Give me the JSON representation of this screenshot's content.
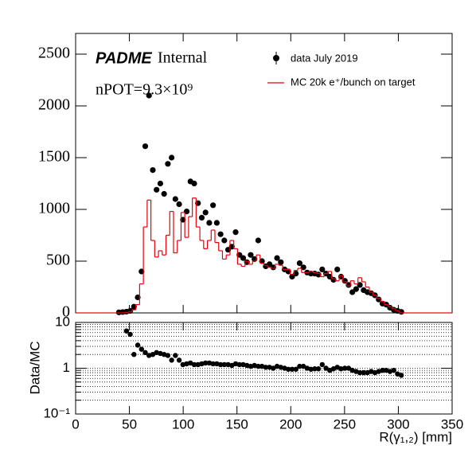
{
  "chart_data": [
    {
      "type": "histogram",
      "annotations": [
        "PADME",
        "Internal",
        "nPOT=9.3×10⁹"
      ],
      "bins": [
        0,
        3.5,
        7,
        10.5,
        14,
        17.5,
        21,
        24.5,
        28,
        31.5,
        35,
        38.5,
        42,
        45.5,
        49,
        52.5,
        56,
        59.5,
        63,
        66.5,
        70,
        73.5,
        77,
        80.5,
        84,
        87.5,
        91,
        94.5,
        98,
        101.5,
        105,
        108.5,
        112,
        115.5,
        119,
        122.5,
        126,
        129.5,
        133,
        136.5,
        140,
        143.5,
        147,
        150.5,
        154,
        157.5,
        161,
        164.5,
        168,
        171.5,
        175,
        178.5,
        182,
        185.5,
        189,
        192.5,
        196,
        199.5,
        203,
        206.5,
        210,
        213.5,
        217,
        220.5,
        224,
        227.5,
        231,
        234.5,
        238,
        241.5,
        245,
        248.5,
        252,
        255.5,
        259,
        262.5,
        266,
        269.5,
        273,
        276.5,
        280,
        283.5,
        287,
        290.5,
        294,
        297.5,
        301,
        304.5,
        308,
        311.5,
        315,
        318.5,
        322,
        325.5,
        329,
        332.5,
        336,
        339.5,
        343,
        346.5,
        350
      ],
      "series": [
        {
          "name": "data July 2019",
          "color": "#000000",
          "style": "points",
          "values": [
            null,
            null,
            null,
            null,
            null,
            null,
            null,
            null,
            null,
            null,
            null,
            5,
            8,
            12,
            20,
            60,
            150,
            400,
            1610,
            2100,
            1380,
            1190,
            1250,
            1150,
            1440,
            1500,
            1100,
            1050,
            900,
            980,
            1270,
            1250,
            1060,
            920,
            970,
            870,
            1040,
            870,
            760,
            700,
            610,
            640,
            780,
            560,
            530,
            490,
            560,
            520,
            700,
            500,
            450,
            470,
            440,
            530,
            490,
            420,
            400,
            350,
            380,
            480,
            440,
            390,
            380,
            380,
            370,
            420,
            380,
            350,
            320,
            420,
            350,
            310,
            270,
            200,
            230,
            270,
            220,
            200,
            190,
            170,
            130,
            90,
            80,
            50,
            30,
            20,
            10,
            null,
            null,
            null,
            null,
            null,
            null,
            null,
            null,
            null,
            null,
            null,
            null,
            null
          ]
        },
        {
          "name": "MC 20k e⁺/bunch on target",
          "color": "#e8000b",
          "style": "step",
          "values": [
            0,
            0,
            0,
            0,
            0,
            0,
            0,
            0,
            0,
            0,
            0,
            0,
            0,
            5,
            10,
            30,
            80,
            280,
            830,
            1090,
            700,
            540,
            600,
            560,
            750,
            980,
            580,
            700,
            970,
            730,
            930,
            1110,
            830,
            700,
            620,
            700,
            800,
            680,
            600,
            520,
            560,
            700,
            620,
            470,
            450,
            500,
            470,
            500,
            560,
            480,
            460,
            440,
            430,
            470,
            460,
            420,
            420,
            370,
            410,
            430,
            390,
            390,
            400,
            390,
            380,
            350,
            380,
            400,
            330,
            310,
            360,
            300,
            260,
            310,
            280,
            340,
            300,
            250,
            200,
            170,
            140,
            110,
            80,
            60,
            40,
            20,
            0,
            0,
            0,
            0,
            0,
            0,
            0,
            0,
            0,
            0,
            0,
            0,
            0,
            0
          ]
        }
      ],
      "xlim": [
        0,
        350
      ],
      "xticks": [
        0,
        50,
        100,
        150,
        200,
        250,
        300,
        350
      ],
      "ylim": [
        0,
        2700
      ],
      "yticks": [
        0,
        500,
        1000,
        1500,
        2000,
        2500
      ],
      "legend": "top-right"
    },
    {
      "type": "ratio",
      "x_label": "R(γ₁,₂) [mm]",
      "y_label": "Data/MC",
      "series": [
        {
          "name": "Data/MC",
          "color": "#000000",
          "values": [
            null,
            null,
            null,
            null,
            null,
            null,
            null,
            null,
            null,
            null,
            null,
            null,
            null,
            6.5,
            5.5,
            2.0,
            3.2,
            2.6,
            2.2,
            1.9,
            2.0,
            2.2,
            2.1,
            2.0,
            1.9,
            1.5,
            1.9,
            1.5,
            1.2,
            1.25,
            1.3,
            1.2,
            1.2,
            1.25,
            1.3,
            1.3,
            1.25,
            1.25,
            1.2,
            1.2,
            1.2,
            1.15,
            1.25,
            1.2,
            1.2,
            1.15,
            1.1,
            1.15,
            1.1,
            1.1,
            1.05,
            1.05,
            1.0,
            1.1,
            1.05,
            1.0,
            0.95,
            0.95,
            0.95,
            1.1,
            1.1,
            1.0,
            0.95,
            0.97,
            0.97,
            1.2,
            1.0,
            0.9,
            0.97,
            1.05,
            0.97,
            1.0,
            1.0,
            0.9,
            0.85,
            0.8,
            0.8,
            0.8,
            0.85,
            0.8,
            0.85,
            0.9,
            0.9,
            0.85,
            0.9,
            0.75,
            0.7,
            null,
            null,
            null,
            null,
            null,
            null,
            null,
            null,
            null,
            null,
            null,
            null,
            null
          ]
        }
      ],
      "log_scale": true,
      "xlim": [
        0,
        350
      ],
      "xticks": [
        0,
        50,
        100,
        150,
        200,
        250,
        300,
        350
      ],
      "ylim": [
        0.1,
        10
      ],
      "yticks": [
        {
          "value": 0.1,
          "label": "10⁻¹"
        },
        1,
        10
      ],
      "y_minor_ticks": [
        0.2,
        0.3,
        0.4,
        0.5,
        0.6,
        0.7,
        0.8,
        0.9,
        2,
        3,
        4,
        5,
        6,
        7,
        8,
        9
      ],
      "grid": true
    }
  ]
}
